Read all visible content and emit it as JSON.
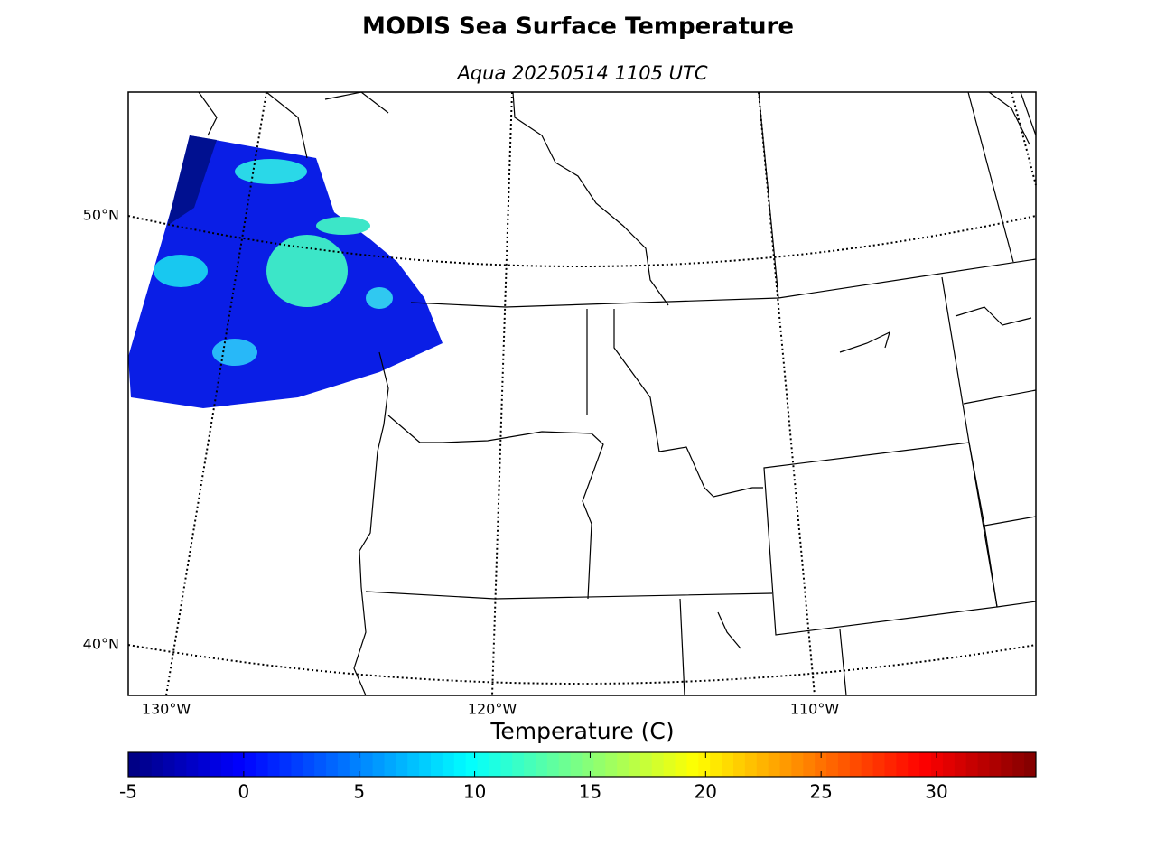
{
  "title": "MODIS Sea Surface Temperature",
  "subtitle": "Aqua 20250514 1105 UTC",
  "map": {
    "lat_labels": [
      "50°N",
      "40°N"
    ],
    "lon_labels": [
      "130°W",
      "120°W",
      "110°W"
    ]
  },
  "colorbar": {
    "label": "Temperature (C)",
    "lim": [
      -5,
      34.3
    ],
    "ticks": [
      -5,
      0,
      5,
      10,
      15,
      20,
      25,
      30
    ]
  }
}
